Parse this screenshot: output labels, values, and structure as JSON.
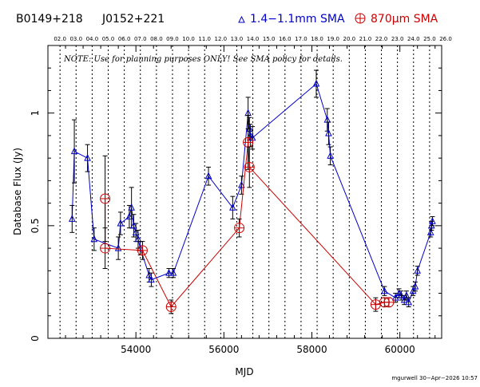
{
  "header": {
    "source_name": "B0149+218",
    "alt_name": "J0152+221",
    "legend_1mm": "1.4−1.1mm SMA",
    "legend_870": "870μm SMA"
  },
  "note": "NOTE: Use for planning purposes ONLY!  See SMA policy for details.",
  "stamp": "mgurwell 30−Apr−2026 10:57",
  "colors": {
    "series_1mm": "#0000cc",
    "series_870": "#cc0000",
    "axis": "#000000"
  },
  "chart_data": {
    "type": "scatter",
    "xlabel": "MJD",
    "ylabel": "Database Flux (Jy)",
    "xlim": [
      52000,
      60950
    ],
    "ylim": [
      0,
      1.3
    ],
    "x_ticks": [
      {
        "value": 54000,
        "label": "54000"
      },
      {
        "value": 56000,
        "label": "56000"
      },
      {
        "value": 58000,
        "label": "58000"
      },
      {
        "value": 60000,
        "label": "60000"
      }
    ],
    "y_ticks": [
      {
        "value": 0,
        "label": "0"
      },
      {
        "value": 0.5,
        "label": "0.5"
      },
      {
        "value": 1,
        "label": "1"
      }
    ],
    "top_axis_year_labels": [
      "02.0",
      "03.0",
      "04.0",
      "05.0",
      "06.0",
      "07.0",
      "08.0",
      "09.0",
      "10.0",
      "11.0",
      "12.0",
      "13.0",
      "14.0",
      "15.0",
      "16.0",
      "17.0",
      "18.0",
      "19.0",
      "20.0",
      "21.0",
      "22.0",
      "23.0",
      "24.0",
      "25.0",
      "26.0"
    ],
    "top_axis_first_mjd": 52275,
    "top_axis_step_days": 365.25,
    "series": [
      {
        "name": "1.4−1.1mm SMA",
        "marker": "triangle",
        "connected": true,
        "points": [
          {
            "x": 52550,
            "y": 0.53,
            "err": 0.06
          },
          {
            "x": 52600,
            "y": 0.83,
            "err": 0.14
          },
          {
            "x": 52900,
            "y": 0.8,
            "err": 0.06
          },
          {
            "x": 53050,
            "y": 0.44,
            "err": 0.05
          },
          {
            "x": 53600,
            "y": 0.4,
            "err": 0.05
          },
          {
            "x": 53650,
            "y": 0.51,
            "err": 0.05
          },
          {
            "x": 53850,
            "y": 0.54,
            "err": 0.05
          },
          {
            "x": 53900,
            "y": 0.58,
            "err": 0.09
          },
          {
            "x": 53950,
            "y": 0.5,
            "err": 0.05
          },
          {
            "x": 54000,
            "y": 0.47,
            "err": 0.04
          },
          {
            "x": 54050,
            "y": 0.44,
            "err": 0.04
          },
          {
            "x": 54100,
            "y": 0.4,
            "err": 0.03
          },
          {
            "x": 54300,
            "y": 0.28,
            "err": 0.03
          },
          {
            "x": 54350,
            "y": 0.26,
            "err": 0.03
          },
          {
            "x": 54750,
            "y": 0.29,
            "err": 0.02
          },
          {
            "x": 54850,
            "y": 0.29,
            "err": 0.02
          },
          {
            "x": 55650,
            "y": 0.72,
            "err": 0.04
          },
          {
            "x": 56200,
            "y": 0.58,
            "err": 0.05
          },
          {
            "x": 56400,
            "y": 0.68,
            "err": 0.04
          },
          {
            "x": 56550,
            "y": 1.0,
            "err": 0.07
          },
          {
            "x": 56580,
            "y": 0.93,
            "err": 0.05
          },
          {
            "x": 56600,
            "y": 0.9,
            "err": 0.05
          },
          {
            "x": 56650,
            "y": 0.89,
            "err": 0.05
          },
          {
            "x": 58100,
            "y": 1.13,
            "err": 0.06
          },
          {
            "x": 58350,
            "y": 0.97,
            "err": 0.05
          },
          {
            "x": 58380,
            "y": 0.91,
            "err": 0.05
          },
          {
            "x": 58420,
            "y": 0.81,
            "err": 0.04
          },
          {
            "x": 59650,
            "y": 0.21,
            "err": 0.02
          },
          {
            "x": 59900,
            "y": 0.18,
            "err": 0.02
          },
          {
            "x": 59980,
            "y": 0.2,
            "err": 0.02
          },
          {
            "x": 60030,
            "y": 0.19,
            "err": 0.02
          },
          {
            "x": 60100,
            "y": 0.17,
            "err": 0.02
          },
          {
            "x": 60150,
            "y": 0.19,
            "err": 0.02
          },
          {
            "x": 60200,
            "y": 0.16,
            "err": 0.02
          },
          {
            "x": 60300,
            "y": 0.21,
            "err": 0.02
          },
          {
            "x": 60350,
            "y": 0.23,
            "err": 0.02
          },
          {
            "x": 60400,
            "y": 0.3,
            "err": 0.02
          },
          {
            "x": 60700,
            "y": 0.47,
            "err": 0.02
          },
          {
            "x": 60720,
            "y": 0.5,
            "err": 0.02
          },
          {
            "x": 60740,
            "y": 0.52,
            "err": 0.02
          }
        ]
      },
      {
        "name": "870μm SMA",
        "marker": "circle-plus",
        "connected": true,
        "points": [
          {
            "x": 53300,
            "y": 0.62,
            "err": 0.19
          },
          {
            "x": 53300,
            "y": 0.4,
            "err": 0.09
          },
          {
            "x": 54150,
            "y": 0.39,
            "err": 0.04
          },
          {
            "x": 54800,
            "y": 0.14,
            "err": 0.03
          },
          {
            "x": 56350,
            "y": 0.49,
            "err": 0.04
          },
          {
            "x": 56550,
            "y": 0.87,
            "err": 0.12
          },
          {
            "x": 56580,
            "y": 0.76,
            "err": 0.09
          },
          {
            "x": 59450,
            "y": 0.15,
            "err": 0.03
          },
          {
            "x": 59650,
            "y": 0.16,
            "err": 0.02
          },
          {
            "x": 59750,
            "y": 0.16,
            "err": 0.02
          }
        ]
      }
    ]
  }
}
